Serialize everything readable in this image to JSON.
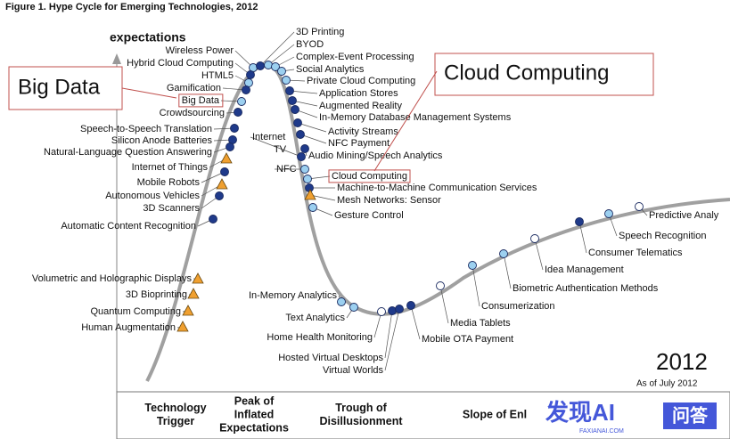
{
  "header": {
    "title": "Figure 1. Hype Cycle for Emerging Technologies, 2012"
  },
  "axis": {
    "y_label": "expectations"
  },
  "technologies": [
    {
      "label": "Wireless Power"
    },
    {
      "label": "Hybrid Cloud Computing"
    },
    {
      "label": "HTML5"
    },
    {
      "label": "Gamification"
    },
    {
      "label": "Big Data"
    },
    {
      "label": "Crowdsourcing"
    },
    {
      "label": "Speech-to-Speech Translation"
    },
    {
      "label": "Silicon Anode Batteries"
    },
    {
      "label": "Natural-Language Question Answering"
    },
    {
      "label": "Internet of Things"
    },
    {
      "label": "Mobile Robots"
    },
    {
      "label": "Autonomous Vehicles"
    },
    {
      "label": "3D Scanners"
    },
    {
      "label": "Automatic Content Recognition"
    },
    {
      "label": "Volumetric and Holographic Displays"
    },
    {
      "label": "3D Bioprinting"
    },
    {
      "label": "Quantum Computing"
    },
    {
      "label": "Human Augmentation"
    },
    {
      "label": "3D Printing"
    },
    {
      "label": "BYOD"
    },
    {
      "label": "Complex-Event Processing"
    },
    {
      "label": "Social Analytics"
    },
    {
      "label": "Private Cloud Computing"
    },
    {
      "label": "Application Stores"
    },
    {
      "label": "Augmented Reality"
    },
    {
      "label": "In-Memory Database Management Systems"
    },
    {
      "label": "Activity Streams"
    },
    {
      "label": "NFC Payment"
    },
    {
      "lines": [
        "Internet",
        "TV"
      ]
    },
    {
      "label": "Audio Mining/Speech Analytics"
    },
    {
      "label": "NFC"
    },
    {
      "label": "Cloud Computing"
    },
    {
      "label": "Machine-to-Machine Communication Services"
    },
    {
      "label": "Mesh Networks: Sensor"
    },
    {
      "label": "Gesture Control"
    },
    {
      "label": "In-Memory Analytics"
    },
    {
      "label": "Text Analytics"
    },
    {
      "label": "Home Health Monitoring"
    },
    {
      "label": "Hosted Virtual Desktops"
    },
    {
      "label": "Virtual Worlds"
    },
    {
      "label": "Mobile OTA Payment"
    },
    {
      "label": "Media Tablets"
    },
    {
      "label": "Consumerization"
    },
    {
      "label": "Biometric Authentication Methods"
    },
    {
      "label": "Idea Management"
    },
    {
      "label": "Consumer Telematics"
    },
    {
      "label": "Speech Recognition"
    },
    {
      "label": "Predictive Analy"
    }
  ],
  "phases": [
    {
      "lines": [
        "Technology",
        "Trigger"
      ]
    },
    {
      "lines": [
        "Peak of",
        "Inflated",
        "Expectations"
      ]
    },
    {
      "lines": [
        "Trough of",
        "Disillusionment"
      ]
    },
    {
      "lines": [
        "Slope of Enl"
      ]
    }
  ],
  "callouts": [
    {
      "label": "Big Data"
    },
    {
      "label": "Cloud Computing"
    }
  ],
  "year": "2012",
  "as_of": "As of July 2012",
  "watermark": {
    "logo": "发现AI",
    "site": "FAXIANAI.COM",
    "badge": "问答"
  }
}
